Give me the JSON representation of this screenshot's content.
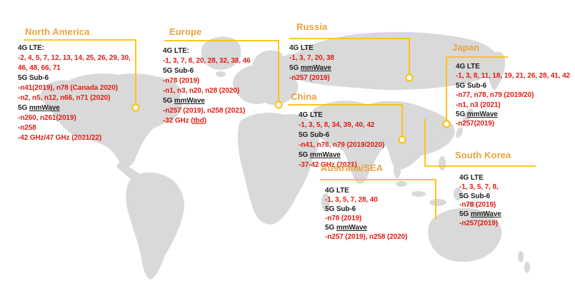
{
  "colors": {
    "accent_line": "#FFC000",
    "region_title": "#E8A33D",
    "band_value": "#E01E14",
    "band_label": "#1F1F1F",
    "map_fill": "#D9D9D9",
    "background": "#FFFFFF"
  },
  "regions": [
    {
      "id": "north-america",
      "title": "North America",
      "lines": [
        {
          "kind": "label",
          "text": "4G LTE:"
        },
        {
          "kind": "value",
          "text": "-2, 4, 5, 7, 12, 13, 14, 25, 26, 29, 30,"
        },
        {
          "kind": "value",
          "text": "46, 48, 66, 71"
        },
        {
          "kind": "label",
          "text": "5G Sub-6"
        },
        {
          "kind": "value",
          "text": "-n41(2019), n78 (Canada 2020)"
        },
        {
          "kind": "value",
          "text": "-n2, n5, n12, n66, n71 (2020)"
        },
        {
          "kind": "label",
          "text": "5G mmWave",
          "underline": "mmWave"
        },
        {
          "kind": "value",
          "text": "-n260, n261(2019)"
        },
        {
          "kind": "value",
          "text": "-n258"
        },
        {
          "kind": "value",
          "text": "-42 GHz/47 GHz (2021/22)"
        }
      ]
    },
    {
      "id": "europe",
      "title": "Europe",
      "lines": [
        {
          "kind": "label",
          "text": "4G LTE:"
        },
        {
          "kind": "value",
          "text": "-1, 3, 7, 8, 20, 28, 32, 38, 46"
        },
        {
          "kind": "label",
          "text": "5G Sub-6"
        },
        {
          "kind": "value",
          "text": "-n78 (2019)"
        },
        {
          "kind": "value",
          "text": "-n1, n3, n20, n28 (2020)"
        },
        {
          "kind": "label",
          "text": "5G mmWave",
          "underline": "mmWave"
        },
        {
          "kind": "value",
          "text": "-n257 (2019), n258 (2021)"
        },
        {
          "kind": "value",
          "text": "-32 GHz (tbd)",
          "underline": "tbd"
        }
      ]
    },
    {
      "id": "russia",
      "title": "Russia",
      "lines": [
        {
          "kind": "label",
          "text": "4G LTE"
        },
        {
          "kind": "value",
          "text": "-1, 3, 7, 20, 38"
        },
        {
          "kind": "label",
          "text": "5G mmWave",
          "underline": "mmWave"
        },
        {
          "kind": "value",
          "text": "-n257 (2019)"
        }
      ]
    },
    {
      "id": "china",
      "title": "China",
      "lines": [
        {
          "kind": "label",
          "text": "4G LTE"
        },
        {
          "kind": "value",
          "text": "-1, 3, 5, 8, 34, 39, 40, 42"
        },
        {
          "kind": "label",
          "text": "5G Sub-6"
        },
        {
          "kind": "value",
          "text": "-n41, n78, n79 (2019/2020)"
        },
        {
          "kind": "label",
          "text": "5G mmWave",
          "underline": "mmWave"
        },
        {
          "kind": "value",
          "text": "-37-42 GHz (2021)"
        }
      ]
    },
    {
      "id": "japan",
      "title": "Japan",
      "lines": [
        {
          "kind": "label",
          "text": "4G LTE"
        },
        {
          "kind": "value",
          "text": "-1, 3, 8, 11, 18, 19, 21, 26, 28, 41, 42"
        },
        {
          "kind": "label",
          "text": "5G Sub-6"
        },
        {
          "kind": "value",
          "text": "-n77, n78, n79 (2019/20)"
        },
        {
          "kind": "value",
          "text": "-n1, n3 (2021)"
        },
        {
          "kind": "label",
          "text": "5G mmWave",
          "underline": "mmWave"
        },
        {
          "kind": "value",
          "text": "-n257(2019)"
        }
      ]
    },
    {
      "id": "australia-sea",
      "title": "Australia/SEA",
      "lines": [
        {
          "kind": "label",
          "text": "4G LTE"
        },
        {
          "kind": "value",
          "text": "-1, 3, 5, 7, 28, 40"
        },
        {
          "kind": "label",
          "text": "5G Sub-6"
        },
        {
          "kind": "value",
          "text": "-n78 (2019)"
        },
        {
          "kind": "label",
          "text": "5G mmWave",
          "underline": "mmWave"
        },
        {
          "kind": "value",
          "text": "-n257 (2019), n258 (2020)"
        }
      ]
    },
    {
      "id": "south-korea",
      "title": "South Korea",
      "lines": [
        {
          "kind": "label",
          "text": "4G LTE"
        },
        {
          "kind": "value",
          "text": "-1, 3, 5, 7, 8,"
        },
        {
          "kind": "label",
          "text": "5G Sub-6"
        },
        {
          "kind": "value",
          "text": "-n78 (2019)"
        },
        {
          "kind": "label",
          "text": "5G mmWave",
          "underline": "mmWave"
        },
        {
          "kind": "value",
          "text": "-n257(2019)"
        }
      ]
    }
  ]
}
